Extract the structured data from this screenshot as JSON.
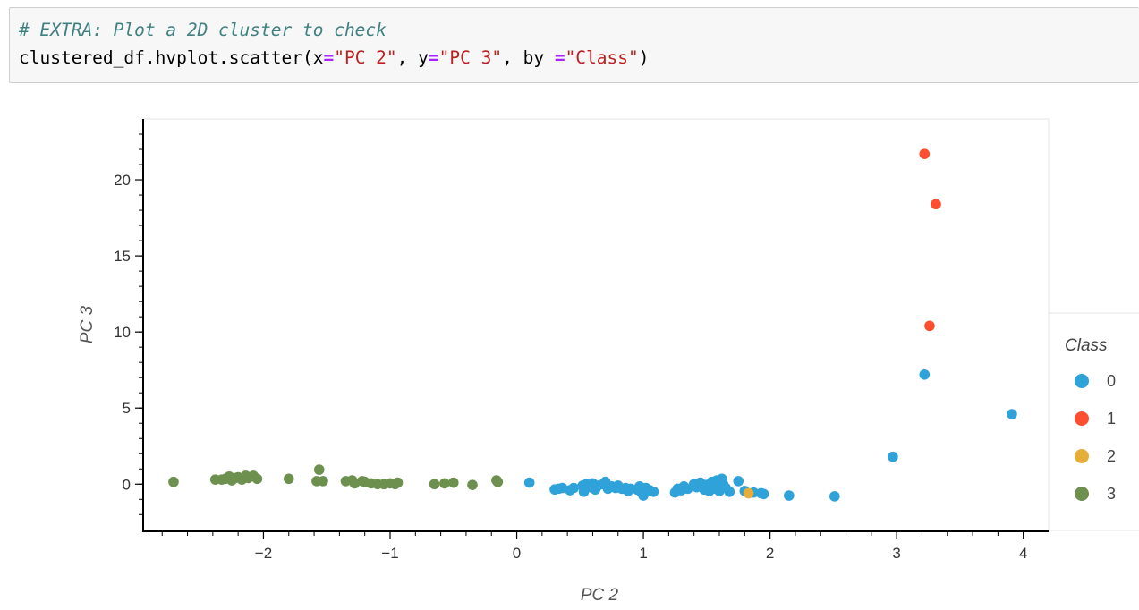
{
  "code": {
    "comment": "# EXTRA: Plot a 2D cluster to check",
    "call_prefix": "clustered_df.hvplot.scatter(x",
    "eq1": "=",
    "x_arg": "\"PC 2\"",
    "mid1": ", y",
    "eq2": "=",
    "y_arg": "\"PC 3\"",
    "mid2": ", by ",
    "eq3": "=",
    "by_arg": "\"Class\"",
    "close": ")"
  },
  "colors": {
    "class_0": "#30a2da",
    "class_1": "#fc4f30",
    "class_2": "#e5ae38",
    "class_3": "#6d904f"
  },
  "chart_data": {
    "type": "scatter",
    "xlabel": "PC 2",
    "ylabel": "PC 3",
    "xlim": [
      -2.95,
      4.2
    ],
    "ylim": [
      -3.1,
      24
    ],
    "x_ticks": [
      -2,
      -1,
      0,
      1,
      2,
      3,
      4
    ],
    "y_ticks": [
      0,
      5,
      10,
      15,
      20
    ],
    "x_tick_labels": [
      "−2",
      "−1",
      "0",
      "1",
      "2",
      "3",
      "4"
    ],
    "y_tick_labels": [
      "0",
      "5",
      "10",
      "15",
      "20"
    ],
    "grid": false,
    "legend": {
      "title": "Class",
      "placement": "right"
    },
    "series": [
      {
        "name": "0",
        "color": "#30a2da",
        "points": [
          [
            0.1,
            0.1
          ],
          [
            0.3,
            -0.35
          ],
          [
            0.33,
            -0.3
          ],
          [
            0.36,
            -0.25
          ],
          [
            0.42,
            -0.4
          ],
          [
            0.45,
            -0.25
          ],
          [
            0.52,
            -0.1
          ],
          [
            0.53,
            -0.5
          ],
          [
            0.55,
            0.0
          ],
          [
            0.58,
            -0.2
          ],
          [
            0.6,
            0.05
          ],
          [
            0.62,
            -0.35
          ],
          [
            0.64,
            -0.1
          ],
          [
            0.68,
            0.0
          ],
          [
            0.7,
            0.15
          ],
          [
            0.72,
            -0.3
          ],
          [
            0.75,
            -0.15
          ],
          [
            0.78,
            -0.25
          ],
          [
            0.8,
            -0.1
          ],
          [
            0.83,
            -0.3
          ],
          [
            0.86,
            -0.25
          ],
          [
            0.88,
            -0.45
          ],
          [
            0.9,
            -0.3
          ],
          [
            0.95,
            -0.35
          ],
          [
            0.97,
            -0.15
          ],
          [
            0.98,
            -0.5
          ],
          [
            1.0,
            -0.75
          ],
          [
            1.01,
            -0.55
          ],
          [
            1.02,
            -0.25
          ],
          [
            1.05,
            -0.4
          ],
          [
            1.08,
            -0.5
          ],
          [
            1.25,
            -0.55
          ],
          [
            1.27,
            -0.3
          ],
          [
            1.3,
            -0.4
          ],
          [
            1.32,
            -0.15
          ],
          [
            1.35,
            -0.3
          ],
          [
            1.4,
            0.0
          ],
          [
            1.42,
            -0.2
          ],
          [
            1.45,
            0.1
          ],
          [
            1.48,
            -0.35
          ],
          [
            1.5,
            -0.05
          ],
          [
            1.52,
            -0.45
          ],
          [
            1.54,
            0.15
          ],
          [
            1.55,
            -0.3
          ],
          [
            1.57,
            -0.1
          ],
          [
            1.58,
            0.25
          ],
          [
            1.6,
            -0.45
          ],
          [
            1.62,
            0.35
          ],
          [
            1.63,
            0.0
          ],
          [
            1.65,
            -0.25
          ],
          [
            1.68,
            -0.5
          ],
          [
            1.75,
            0.2
          ],
          [
            1.8,
            -0.45
          ],
          [
            1.87,
            -0.55
          ],
          [
            1.93,
            -0.6
          ],
          [
            1.95,
            -0.65
          ],
          [
            2.15,
            -0.75
          ],
          [
            2.51,
            -0.8
          ],
          [
            2.97,
            1.8
          ],
          [
            3.22,
            7.2
          ],
          [
            3.91,
            4.6
          ]
        ]
      },
      {
        "name": "1",
        "color": "#fc4f30",
        "points": [
          [
            3.22,
            21.7
          ],
          [
            3.31,
            18.4
          ],
          [
            3.26,
            10.4
          ]
        ]
      },
      {
        "name": "2",
        "color": "#e5ae38",
        "points": [
          [
            1.83,
            -0.6
          ]
        ]
      },
      {
        "name": "3",
        "color": "#6d904f",
        "points": [
          [
            -2.71,
            0.15
          ],
          [
            -2.38,
            0.3
          ],
          [
            -2.33,
            0.3
          ],
          [
            -2.3,
            0.35
          ],
          [
            -2.27,
            0.5
          ],
          [
            -2.25,
            0.25
          ],
          [
            -2.22,
            0.4
          ],
          [
            -2.2,
            0.45
          ],
          [
            -2.17,
            0.3
          ],
          [
            -2.14,
            0.55
          ],
          [
            -2.12,
            0.4
          ],
          [
            -2.08,
            0.55
          ],
          [
            -2.05,
            0.35
          ],
          [
            -1.8,
            0.35
          ],
          [
            -1.58,
            0.2
          ],
          [
            -1.56,
            0.95
          ],
          [
            -1.53,
            0.2
          ],
          [
            -1.35,
            0.2
          ],
          [
            -1.3,
            0.25
          ],
          [
            -1.28,
            0.05
          ],
          [
            -1.22,
            0.2
          ],
          [
            -1.2,
            0.15
          ],
          [
            -1.15,
            0.05
          ],
          [
            -1.1,
            0.0
          ],
          [
            -1.05,
            0.0
          ],
          [
            -1.0,
            0.05
          ],
          [
            -0.96,
            0.0
          ],
          [
            -0.94,
            0.1
          ],
          [
            -0.65,
            0.0
          ],
          [
            -0.57,
            0.05
          ],
          [
            -0.5,
            0.1
          ],
          [
            -0.35,
            -0.05
          ],
          [
            -0.16,
            0.25
          ],
          [
            -0.15,
            0.15
          ]
        ]
      }
    ]
  }
}
